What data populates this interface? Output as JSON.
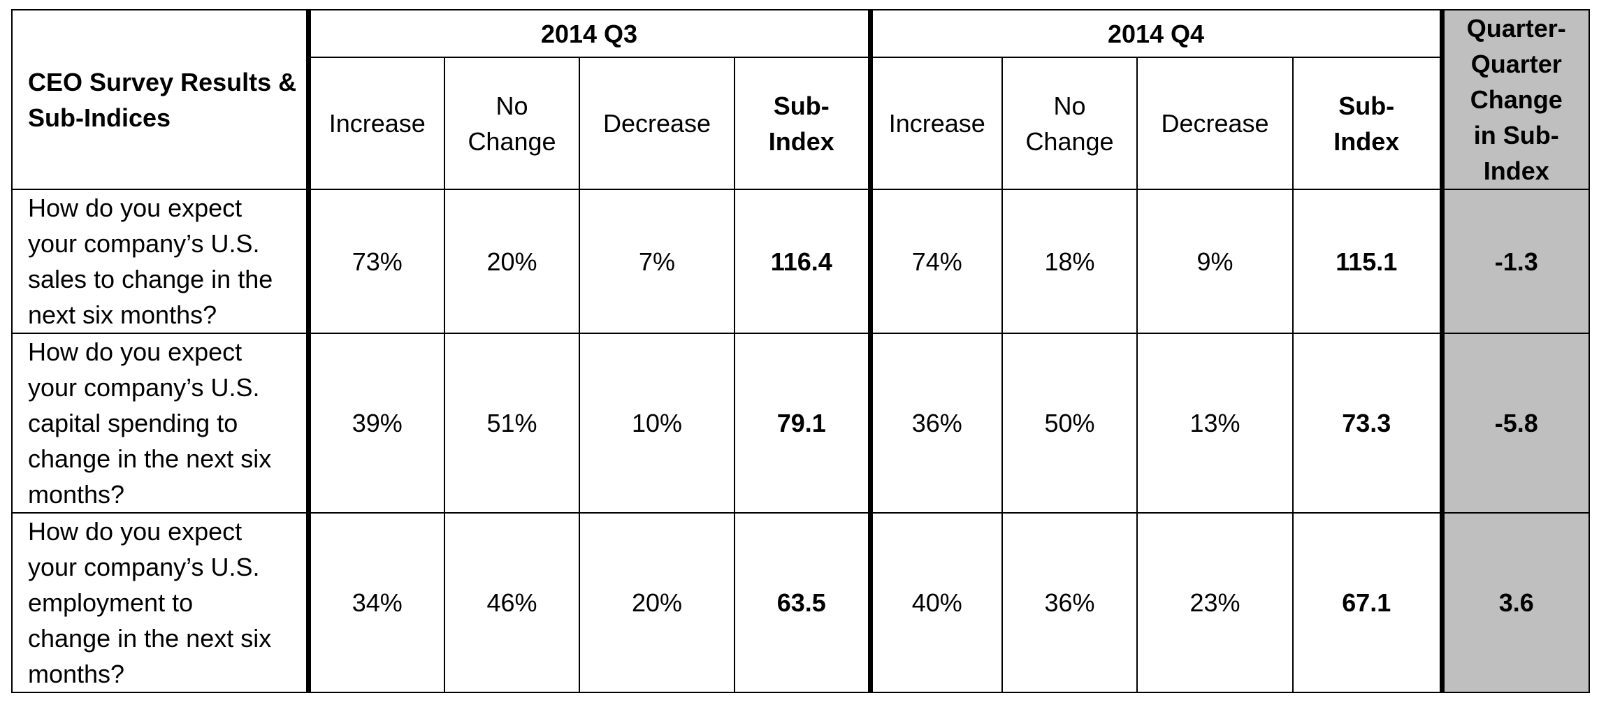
{
  "table": {
    "title": "CEO Survey Results & Sub-Indices",
    "periods": [
      "2014 Q3",
      "2014 Q4"
    ],
    "change_header": "Quarter-Quarter Change in Sub-Index",
    "change_header_lines": [
      "Quarter-",
      "Quarter",
      "Change",
      "in Sub-",
      "Index"
    ],
    "columns": [
      {
        "lines": [
          "Increase"
        ]
      },
      {
        "lines": [
          "No",
          "Change"
        ]
      },
      {
        "lines": [
          "Decrease"
        ]
      },
      {
        "lines": [
          "Sub-",
          "Index"
        ]
      }
    ],
    "rows": [
      {
        "question_lines": [
          "How do you expect",
          "your company’s U.S.",
          "sales to change in the",
          "next six months?"
        ],
        "q3": [
          "73%",
          "20%",
          "7%",
          "116.4"
        ],
        "q4": [
          "74%",
          "18%",
          "9%",
          "115.1"
        ],
        "change": "-1.3"
      },
      {
        "question_lines": [
          "How do you expect",
          "your company’s U.S.",
          "capital spending to",
          "change in the next six",
          "months?"
        ],
        "q3": [
          "39%",
          "51%",
          "10%",
          "79.1"
        ],
        "q4": [
          "36%",
          "50%",
          "13%",
          "73.3"
        ],
        "change": "-5.8"
      },
      {
        "question_lines": [
          "How do you expect",
          "your company’s U.S.",
          "employment to",
          "change in the next six",
          "months?"
        ],
        "q3": [
          "34%",
          "46%",
          "20%",
          "63.5"
        ],
        "q4": [
          "40%",
          "36%",
          "23%",
          "67.1"
        ],
        "change": "3.6"
      }
    ],
    "colors": {
      "change_column_bg": "#bfbfbf",
      "border": "#000000"
    }
  }
}
